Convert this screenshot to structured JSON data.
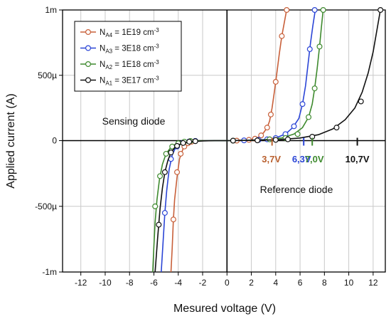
{
  "chart_data": {
    "type": "line",
    "xlabel": "Mesured voltage (V)",
    "ylabel": "Applied current (A)",
    "xlim": [
      -13.5,
      13
    ],
    "ylim": [
      -1,
      1
    ],
    "x_ticks": [
      {
        "v": -12,
        "label": "-12"
      },
      {
        "v": -10,
        "label": "-10"
      },
      {
        "v": -8,
        "label": "-8"
      },
      {
        "v": -6,
        "label": "-6"
      },
      {
        "v": -4,
        "label": "-4"
      },
      {
        "v": -2,
        "label": "-2"
      },
      {
        "v": 0,
        "label": "0"
      },
      {
        "v": 2,
        "label": "2"
      },
      {
        "v": 4,
        "label": "4"
      },
      {
        "v": 6,
        "label": "6"
      },
      {
        "v": 8,
        "label": "8"
      },
      {
        "v": 10,
        "label": "10"
      },
      {
        "v": 12,
        "label": "12"
      }
    ],
    "y_ticks": [
      {
        "v": 1,
        "label": "1m"
      },
      {
        "v": 0.5,
        "label": "500µ"
      },
      {
        "v": 0,
        "label": "0"
      },
      {
        "v": -0.5,
        "label": "-500µ"
      },
      {
        "v": -1,
        "label": "-1m"
      }
    ],
    "y_unit_note": "y values in mA",
    "grid": true,
    "legend_position": "top-left",
    "series": [
      {
        "name_main": "N",
        "name_sub": "A4",
        "name_rest": " = 1E19 cm",
        "name_sup": "-3",
        "color": "#c8603a",
        "x": [
          -4.6,
          -4.5,
          -4.4,
          -4.3,
          -4.1,
          -3.9,
          -3.6,
          -3.3,
          -3.0,
          -2.5,
          -2.0,
          -1.0,
          0,
          1.0,
          1.8,
          2.3,
          2.7,
          3.0,
          3.3,
          3.5,
          3.7,
          3.9,
          4.1,
          4.3,
          4.5,
          4.7,
          4.9
        ],
        "y": [
          -1.0,
          -0.82,
          -0.6,
          -0.45,
          -0.28,
          -0.14,
          -0.06,
          -0.025,
          -0.01,
          -0.004,
          -0.001,
          0,
          0,
          0.002,
          0.006,
          0.015,
          0.03,
          0.06,
          0.1,
          0.15,
          0.25,
          0.38,
          0.52,
          0.67,
          0.8,
          0.9,
          1.0
        ],
        "markers_x": [
          -4.4,
          -4.1,
          -3.8,
          -3.5,
          -3.2,
          -2.9,
          0.8,
          1.8,
          2.3,
          2.8,
          3.3,
          3.6,
          4.0,
          4.5,
          4.9
        ],
        "markers_y": [
          -0.6,
          -0.24,
          -0.1,
          -0.045,
          -0.02,
          -0.008,
          0,
          0.006,
          0.015,
          0.04,
          0.1,
          0.2,
          0.45,
          0.8,
          1.0
        ]
      },
      {
        "name_main": "N",
        "name_sub": "A3",
        "name_rest": " = 3E18 cm",
        "name_sup": "-3",
        "color": "#2b45d6",
        "x": [
          -5.4,
          -5.25,
          -5.1,
          -4.95,
          -4.75,
          -4.5,
          -4.2,
          -3.8,
          -3.3,
          -2.6,
          -1.5,
          0,
          1.5,
          3.0,
          4.0,
          4.8,
          5.4,
          5.9,
          6.2,
          6.45,
          6.65,
          6.85,
          7.05,
          7.25
        ],
        "y": [
          -1.0,
          -0.78,
          -0.55,
          -0.38,
          -0.22,
          -0.11,
          -0.05,
          -0.02,
          -0.008,
          -0.002,
          0,
          0,
          0.002,
          0.008,
          0.02,
          0.05,
          0.1,
          0.17,
          0.28,
          0.42,
          0.58,
          0.74,
          0.88,
          1.0
        ],
        "markers_x": [
          -5.1,
          -4.6,
          -4.1,
          -3.6,
          -3.1,
          -2.6,
          1.4,
          2.6,
          3.3,
          4.0,
          4.8,
          5.5,
          6.2,
          6.8,
          7.2
        ],
        "markers_y": [
          -0.55,
          -0.14,
          -0.045,
          -0.015,
          -0.006,
          -0.002,
          0.002,
          0.006,
          0.01,
          0.02,
          0.05,
          0.11,
          0.28,
          0.7,
          1.0
        ]
      },
      {
        "name_main": "N",
        "name_sub": "A2",
        "name_rest": " = 1E18 cm",
        "name_sup": "-3",
        "color": "#3e8a2e",
        "x": [
          -6.1,
          -6.0,
          -5.9,
          -5.75,
          -5.55,
          -5.3,
          -5.0,
          -4.6,
          -4.1,
          -3.4,
          -2.5,
          -1.0,
          0,
          1.5,
          3.0,
          4.5,
          5.5,
          6.2,
          6.7,
          7.0,
          7.2,
          7.4,
          7.6,
          7.75,
          7.9
        ],
        "y": [
          -1.0,
          -0.8,
          -0.62,
          -0.45,
          -0.3,
          -0.18,
          -0.1,
          -0.05,
          -0.02,
          -0.006,
          -0.001,
          0,
          0,
          0.002,
          0.006,
          0.02,
          0.05,
          0.1,
          0.18,
          0.28,
          0.4,
          0.55,
          0.72,
          0.87,
          1.0
        ],
        "markers_x": [
          -5.9,
          -5.5,
          -5.0,
          -4.5,
          -4.0,
          -3.5,
          -3.0,
          0.5,
          3.5,
          4.8,
          5.8,
          6.7,
          7.2,
          7.6,
          7.9
        ],
        "markers_y": [
          -0.5,
          -0.27,
          -0.1,
          -0.045,
          -0.02,
          -0.008,
          -0.003,
          0,
          0.01,
          0.02,
          0.05,
          0.18,
          0.4,
          0.72,
          1.0
        ]
      },
      {
        "name_main": "N",
        "name_sub": "A1",
        "name_rest": " = 3E17 cm",
        "name_sup": "-3",
        "color": "#111111",
        "x": [
          -5.9,
          -5.7,
          -5.5,
          -5.3,
          -5.1,
          -4.85,
          -4.6,
          -4.2,
          -3.7,
          -3.0,
          -2.0,
          -1.0,
          0,
          2.0,
          4.0,
          6.0,
          7.5,
          8.7,
          9.7,
          10.5,
          11.1,
          11.6,
          12.0,
          12.3,
          12.6
        ],
        "y": [
          -1.0,
          -0.75,
          -0.52,
          -0.36,
          -0.24,
          -0.15,
          -0.09,
          -0.045,
          -0.02,
          -0.008,
          -0.002,
          0,
          0,
          0.002,
          0.006,
          0.02,
          0.045,
          0.09,
          0.16,
          0.25,
          0.37,
          0.52,
          0.68,
          0.84,
          1.0
        ],
        "markers_x": [
          -5.6,
          -5.1,
          -4.6,
          -4.1,
          -3.6,
          -3.1,
          -2.6,
          0.5,
          2.5,
          4.0,
          5.0,
          7.0,
          9.0,
          11.0,
          12.6
        ],
        "markers_y": [
          -0.64,
          -0.24,
          -0.09,
          -0.04,
          -0.018,
          -0.008,
          -0.004,
          0,
          0.002,
          0.006,
          0.01,
          0.03,
          0.1,
          0.3,
          1.0
        ]
      }
    ],
    "annotations": {
      "sensing": "Sensing diode",
      "reference": "Reference diode",
      "breakdown_labels": [
        {
          "text": "3,7V",
          "x": 3.7,
          "color": "#b9602f"
        },
        {
          "text": "6,3V",
          "x": 6.3,
          "color": "#2b45d6"
        },
        {
          "text": "7,0V",
          "x": 7.0,
          "color": "#3e8a2e"
        },
        {
          "text": "10,7V",
          "x": 10.7,
          "color": "#111111"
        }
      ]
    }
  }
}
